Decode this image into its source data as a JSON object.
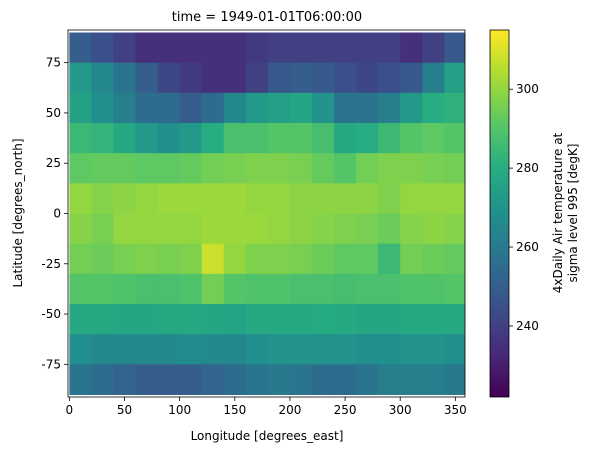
{
  "chart_data": {
    "type": "heatmap",
    "title": "time = 1949-01-01T06:00:00",
    "x_label": "Longitude [degrees_east]",
    "y_label": "Latitude [degrees_north]",
    "colorbar_label": [
      "4xDaily Air temperature at",
      "sigma level 995 [degK]"
    ],
    "colormap": "viridis",
    "x": [
      10,
      30,
      50,
      70,
      90,
      110,
      130,
      150,
      170,
      190,
      210,
      230,
      250,
      270,
      290,
      310,
      330,
      350
    ],
    "y": [
      82.5,
      67.5,
      52.5,
      37.5,
      22.5,
      7.5,
      -7.5,
      -22.5,
      -37.5,
      -52.5,
      -67.5,
      -82.5
    ],
    "values": [
      [
        250,
        245,
        240,
        235,
        235,
        235,
        235,
        235,
        238,
        240,
        240,
        240,
        240,
        240,
        240,
        235,
        240,
        248
      ],
      [
        272,
        265,
        258,
        250,
        242,
        238,
        235,
        235,
        240,
        248,
        250,
        248,
        245,
        242,
        245,
        248,
        262,
        275
      ],
      [
        275,
        268,
        262,
        255,
        255,
        250,
        255,
        265,
        272,
        275,
        277,
        270,
        258,
        258,
        262,
        272,
        280,
        282
      ],
      [
        285,
        283,
        278,
        272,
        268,
        272,
        280,
        288,
        288,
        290,
        290,
        287,
        278,
        280,
        285,
        290,
        292,
        290
      ],
      [
        292,
        293,
        293,
        292,
        292,
        293,
        295,
        296,
        297,
        297,
        296,
        293,
        290,
        295,
        297,
        297,
        296,
        295
      ],
      [
        300,
        298,
        299,
        300,
        301,
        301,
        301,
        301,
        300,
        300,
        299,
        299,
        299,
        299,
        297,
        300,
        300,
        300
      ],
      [
        298,
        296,
        300,
        300,
        300,
        300,
        301,
        301,
        301,
        300,
        299,
        298,
        297,
        296,
        294,
        298,
        299,
        298
      ],
      [
        295,
        294,
        296,
        297,
        296,
        297,
        308,
        300,
        297,
        297,
        296,
        294,
        292,
        292,
        285,
        295,
        294,
        293
      ],
      [
        290,
        290,
        289,
        288,
        288,
        289,
        295,
        290,
        289,
        289,
        288,
        288,
        287,
        288,
        288,
        289,
        289,
        290
      ],
      [
        278,
        278,
        277,
        277,
        278,
        278,
        277,
        276,
        278,
        278,
        278,
        279,
        278,
        277,
        277,
        278,
        278,
        278
      ],
      [
        268,
        266,
        265,
        266,
        266,
        267,
        266,
        265,
        268,
        270,
        270,
        270,
        270,
        268,
        268,
        270,
        270,
        268
      ],
      [
        258,
        255,
        252,
        250,
        250,
        250,
        252,
        255,
        258,
        260,
        258,
        255,
        255,
        258,
        262,
        262,
        262,
        260
      ]
    ],
    "xlim": [
      -1.25,
      358.75
    ],
    "xticks": [
      0,
      50,
      100,
      150,
      200,
      250,
      300,
      350
    ],
    "ylim": [
      -91.25,
      91.25
    ],
    "yticks": [
      -75,
      -50,
      -25,
      0,
      25,
      50,
      75
    ],
    "zlim": [
      222,
      315
    ],
    "zticks": [
      240,
      260,
      280,
      300
    ]
  }
}
